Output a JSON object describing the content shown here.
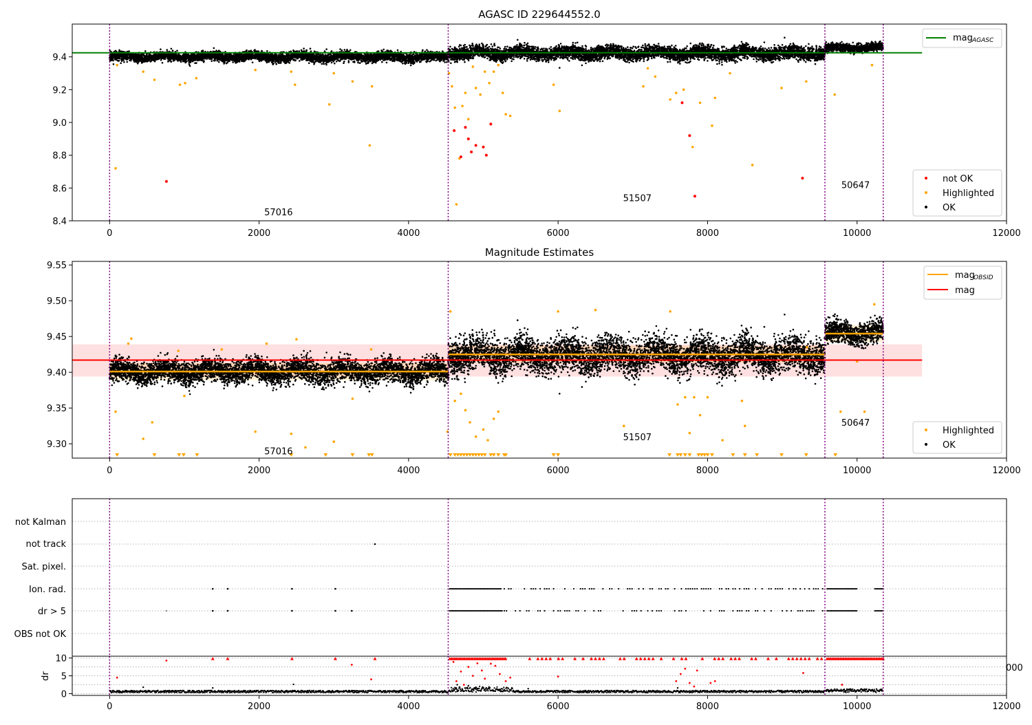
{
  "chart_data": [
    {
      "type": "scatter",
      "title": "AGASC ID 229644552.0",
      "xlim": [
        -500,
        12000
      ],
      "ylim": [
        8.4,
        9.6
      ],
      "xticks": [
        0,
        2000,
        4000,
        6000,
        8000,
        10000,
        12000
      ],
      "yticks": [
        "8.4",
        "8.6",
        "8.8",
        "9.0",
        "9.2",
        "9.4"
      ],
      "obs_boundaries": [
        0,
        4530,
        9570,
        10350
      ],
      "obsid_labels": [
        {
          "text": "57016",
          "x": 2260,
          "y": 8.455
        },
        {
          "text": "51507",
          "x": 7060,
          "y": 8.54
        },
        {
          "text": "50647",
          "x": 9980,
          "y": 8.62
        }
      ],
      "mag_agasc": 9.425,
      "mag_agasc_span": [
        -500,
        10870
      ],
      "segments": [
        {
          "start": 0,
          "end": 4530,
          "mean": 9.4,
          "spread": 0.014
        },
        {
          "start": 4530,
          "end": 9570,
          "mean": 9.423,
          "spread": 0.02
        },
        {
          "start": 9570,
          "end": 10350,
          "mean": 9.455,
          "spread": 0.012
        }
      ],
      "highlighted_points": [
        [
          80,
          8.72
        ],
        [
          100,
          9.35
        ],
        [
          450,
          9.31
        ],
        [
          600,
          9.26
        ],
        [
          940,
          9.23
        ],
        [
          1010,
          9.24
        ],
        [
          1160,
          9.27
        ],
        [
          1950,
          9.32
        ],
        [
          2430,
          9.31
        ],
        [
          2480,
          9.23
        ],
        [
          2940,
          9.11
        ],
        [
          3000,
          9.3
        ],
        [
          3250,
          9.25
        ],
        [
          3480,
          8.86
        ],
        [
          3510,
          9.22
        ],
        [
          4540,
          9.3
        ],
        [
          4580,
          9.22
        ],
        [
          4620,
          9.09
        ],
        [
          4640,
          8.5
        ],
        [
          4680,
          8.78
        ],
        [
          4720,
          9.1
        ],
        [
          4760,
          9.18
        ],
        [
          4800,
          9.02
        ],
        [
          4860,
          9.34
        ],
        [
          4900,
          9.21
        ],
        [
          4960,
          9.17
        ],
        [
          5020,
          9.31
        ],
        [
          5080,
          9.24
        ],
        [
          5140,
          9.31
        ],
        [
          5200,
          9.35
        ],
        [
          5260,
          9.18
        ],
        [
          5300,
          9.05
        ],
        [
          5360,
          9.04
        ],
        [
          5940,
          9.23
        ],
        [
          6020,
          9.07
        ],
        [
          7140,
          9.22
        ],
        [
          7200,
          9.33
        ],
        [
          7300,
          9.28
        ],
        [
          7500,
          9.14
        ],
        [
          7580,
          9.18
        ],
        [
          7680,
          9.2
        ],
        [
          7800,
          8.85
        ],
        [
          7900,
          9.12
        ],
        [
          8060,
          8.98
        ],
        [
          8100,
          9.15
        ],
        [
          8300,
          9.3
        ],
        [
          8600,
          8.74
        ],
        [
          8990,
          9.21
        ],
        [
          9320,
          9.25
        ],
        [
          9700,
          9.17
        ],
        [
          10200,
          9.35
        ]
      ],
      "not_ok_points": [
        [
          760,
          8.64
        ],
        [
          4610,
          8.95
        ],
        [
          4700,
          8.79
        ],
        [
          4760,
          8.97
        ],
        [
          4800,
          8.9
        ],
        [
          4840,
          8.82
        ],
        [
          4900,
          8.86
        ],
        [
          5000,
          8.85
        ],
        [
          5040,
          8.8
        ],
        [
          5100,
          8.99
        ],
        [
          7660,
          9.12
        ],
        [
          7760,
          8.92
        ],
        [
          7830,
          8.55
        ],
        [
          9270,
          8.66
        ]
      ],
      "legend": {
        "line": [
          {
            "label": "mag",
            "sub": "AGASC",
            "color": "#008000"
          }
        ],
        "points": [
          {
            "label": "not OK",
            "color": "#ff0000"
          },
          {
            "label": "Highlighted",
            "color": "#ffa500"
          },
          {
            "label": "OK",
            "color": "#000000"
          }
        ]
      }
    },
    {
      "type": "scatter",
      "title": "Magnitude Estimates",
      "xlim": [
        -500,
        12000
      ],
      "ylim": [
        9.28,
        9.555
      ],
      "xticks": [
        0,
        2000,
        4000,
        6000,
        8000,
        10000,
        12000
      ],
      "yticks": [
        "9.30",
        "9.35",
        "9.40",
        "9.45",
        "9.50",
        "9.55"
      ],
      "obs_boundaries": [
        0,
        4530,
        9570,
        10350
      ],
      "obsid_labels": [
        {
          "text": "57016",
          "x": 2260,
          "y": 9.29
        },
        {
          "text": "51507",
          "x": 7060,
          "y": 9.31
        },
        {
          "text": "50647",
          "x": 9980,
          "y": 9.33
        }
      ],
      "mag": 9.417,
      "mag_band": [
        9.394,
        9.439
      ],
      "mag_span": [
        -500,
        10870
      ],
      "mag_obsid": [
        {
          "start": 0,
          "end": 4530,
          "value": 9.401
        },
        {
          "start": 4530,
          "end": 9570,
          "value": 9.425
        },
        {
          "start": 9570,
          "end": 10350,
          "value": 9.454
        }
      ],
      "segments": [
        {
          "start": 0,
          "end": 4530,
          "mean": 9.401,
          "spread": 0.008
        },
        {
          "start": 4530,
          "end": 9570,
          "mean": 9.424,
          "spread": 0.012
        },
        {
          "start": 9570,
          "end": 10350,
          "mean": 9.455,
          "spread": 0.008
        }
      ],
      "highlighted_points": [
        [
          80,
          9.345
        ],
        [
          250,
          9.44
        ],
        [
          290,
          9.447
        ],
        [
          450,
          9.307
        ],
        [
          570,
          9.33
        ],
        [
          920,
          9.43
        ],
        [
          1000,
          9.367
        ],
        [
          1500,
          9.432
        ],
        [
          1950,
          9.317
        ],
        [
          2100,
          9.44
        ],
        [
          2430,
          9.314
        ],
        [
          2500,
          9.446
        ],
        [
          2620,
          9.295
        ],
        [
          3000,
          9.303
        ],
        [
          3250,
          9.363
        ],
        [
          3500,
          9.432
        ],
        [
          4520,
          9.317
        ],
        [
          4560,
          9.485
        ],
        [
          4620,
          9.36
        ],
        [
          4700,
          9.37
        ],
        [
          4760,
          9.347
        ],
        [
          4820,
          9.33
        ],
        [
          4900,
          9.31
        ],
        [
          5000,
          9.32
        ],
        [
          5060,
          9.305
        ],
        [
          5140,
          9.335
        ],
        [
          5200,
          9.345
        ],
        [
          6000,
          9.485
        ],
        [
          6500,
          9.487
        ],
        [
          6880,
          9.325
        ],
        [
          7500,
          9.485
        ],
        [
          7600,
          9.355
        ],
        [
          7700,
          9.365
        ],
        [
          7760,
          9.315
        ],
        [
          7820,
          9.365
        ],
        [
          7900,
          9.34
        ],
        [
          8000,
          9.365
        ],
        [
          8200,
          9.305
        ],
        [
          8460,
          9.36
        ],
        [
          8500,
          9.325
        ],
        [
          9330,
          9.435
        ],
        [
          9780,
          9.345
        ],
        [
          10000,
          9.415
        ],
        [
          10100,
          9.345
        ],
        [
          10230,
          9.495
        ]
      ],
      "lower_limit_markers": [
        100,
        600,
        930,
        990,
        1170,
        2430,
        2890,
        3250,
        3470,
        3510,
        4560,
        4620,
        4660,
        4700,
        4740,
        4780,
        4820,
        4860,
        4900,
        4940,
        4980,
        5020,
        5100,
        5140,
        5200,
        5280,
        5300,
        5940,
        6000,
        7490,
        7600,
        7640,
        7700,
        7760,
        7880,
        7920,
        7960,
        8000,
        8060,
        8340,
        8500,
        8660,
        8990,
        9320,
        9710
      ],
      "legend": {
        "line": [
          {
            "label": "mag",
            "sub": "OBSID",
            "color": "#ffa500"
          },
          {
            "label": "mag",
            "sub": "",
            "color": "#ff0000"
          }
        ],
        "points": [
          {
            "label": "Highlighted",
            "color": "#ffa500"
          },
          {
            "label": "OK",
            "color": "#000000"
          }
        ]
      }
    },
    {
      "type": "scatter",
      "title": "",
      "xlim": [
        -500,
        12000
      ],
      "categories": [
        "not Kalman",
        "not track",
        "Sat. pixel.",
        "Ion. rad.",
        "dr > 5",
        "OBS not OK"
      ],
      "obs_boundaries": [
        0,
        4530,
        9570,
        10350
      ],
      "flag_points": {
        "not track": [
          3550
        ],
        "Ion. rad.": [
          1380,
          1580,
          2440,
          3020
        ],
        "dr > 5": [
          760,
          1380,
          1580,
          2440,
          3020,
          3240
        ]
      },
      "flag_dense_ranges": [
        [
          4550,
          5250
        ],
        [
          9600,
          10000
        ],
        [
          10240,
          10350
        ]
      ],
      "flag_sparse_range": [
        5250,
        9570
      ]
    },
    {
      "type": "scatter",
      "title": "",
      "ylabel": "dr",
      "xlim": [
        -500,
        12000
      ],
      "ylim": [
        -0.5,
        10.5
      ],
      "xticks": [
        0,
        2000,
        4000,
        6000,
        8000,
        10000,
        12000
      ],
      "yticks": [
        "0",
        "5",
        "10"
      ],
      "obs_boundaries": [
        0,
        4530,
        9570,
        10350
      ],
      "red_points": [
        [
          100,
          4.5
        ],
        [
          760,
          9.3
        ],
        [
          3240,
          8.1
        ],
        [
          3500,
          4
        ],
        [
          4600,
          8.9
        ],
        [
          4640,
          3.5
        ],
        [
          4700,
          6.2
        ],
        [
          4740,
          2.5
        ],
        [
          4800,
          7.5
        ],
        [
          4860,
          5
        ],
        [
          4920,
          8.5
        ],
        [
          4980,
          6.5
        ],
        [
          5020,
          4.2
        ],
        [
          5100,
          8.4
        ],
        [
          5160,
          7.8
        ],
        [
          5220,
          5.5
        ],
        [
          5300,
          3.5
        ],
        [
          5360,
          4.5
        ],
        [
          6000,
          4.8
        ],
        [
          7580,
          3.5
        ],
        [
          7640,
          5.5
        ],
        [
          7700,
          7
        ],
        [
          7760,
          3
        ],
        [
          7820,
          2
        ],
        [
          7860,
          6.5
        ],
        [
          8040,
          3
        ],
        [
          8100,
          3.5
        ],
        [
          9280,
          5.8
        ],
        [
          9800,
          2.5
        ]
      ],
      "red_top_ranges": [
        [
          1380,
          1380
        ],
        [
          1580,
          1580
        ],
        [
          2440,
          2440
        ],
        [
          3020,
          3020
        ],
        [
          3550,
          3550
        ],
        [
          4550,
          5300
        ],
        [
          5400,
          9570
        ],
        [
          9600,
          10350
        ]
      ],
      "black_bumps": [
        [
          4650,
          2.5
        ],
        [
          4800,
          2.2
        ],
        [
          4900,
          1.8
        ],
        [
          5600,
          1.4
        ],
        [
          7600,
          1.6
        ],
        [
          2460,
          2.6
        ],
        [
          1380,
          1.6
        ],
        [
          450,
          1.8
        ]
      ]
    }
  ]
}
